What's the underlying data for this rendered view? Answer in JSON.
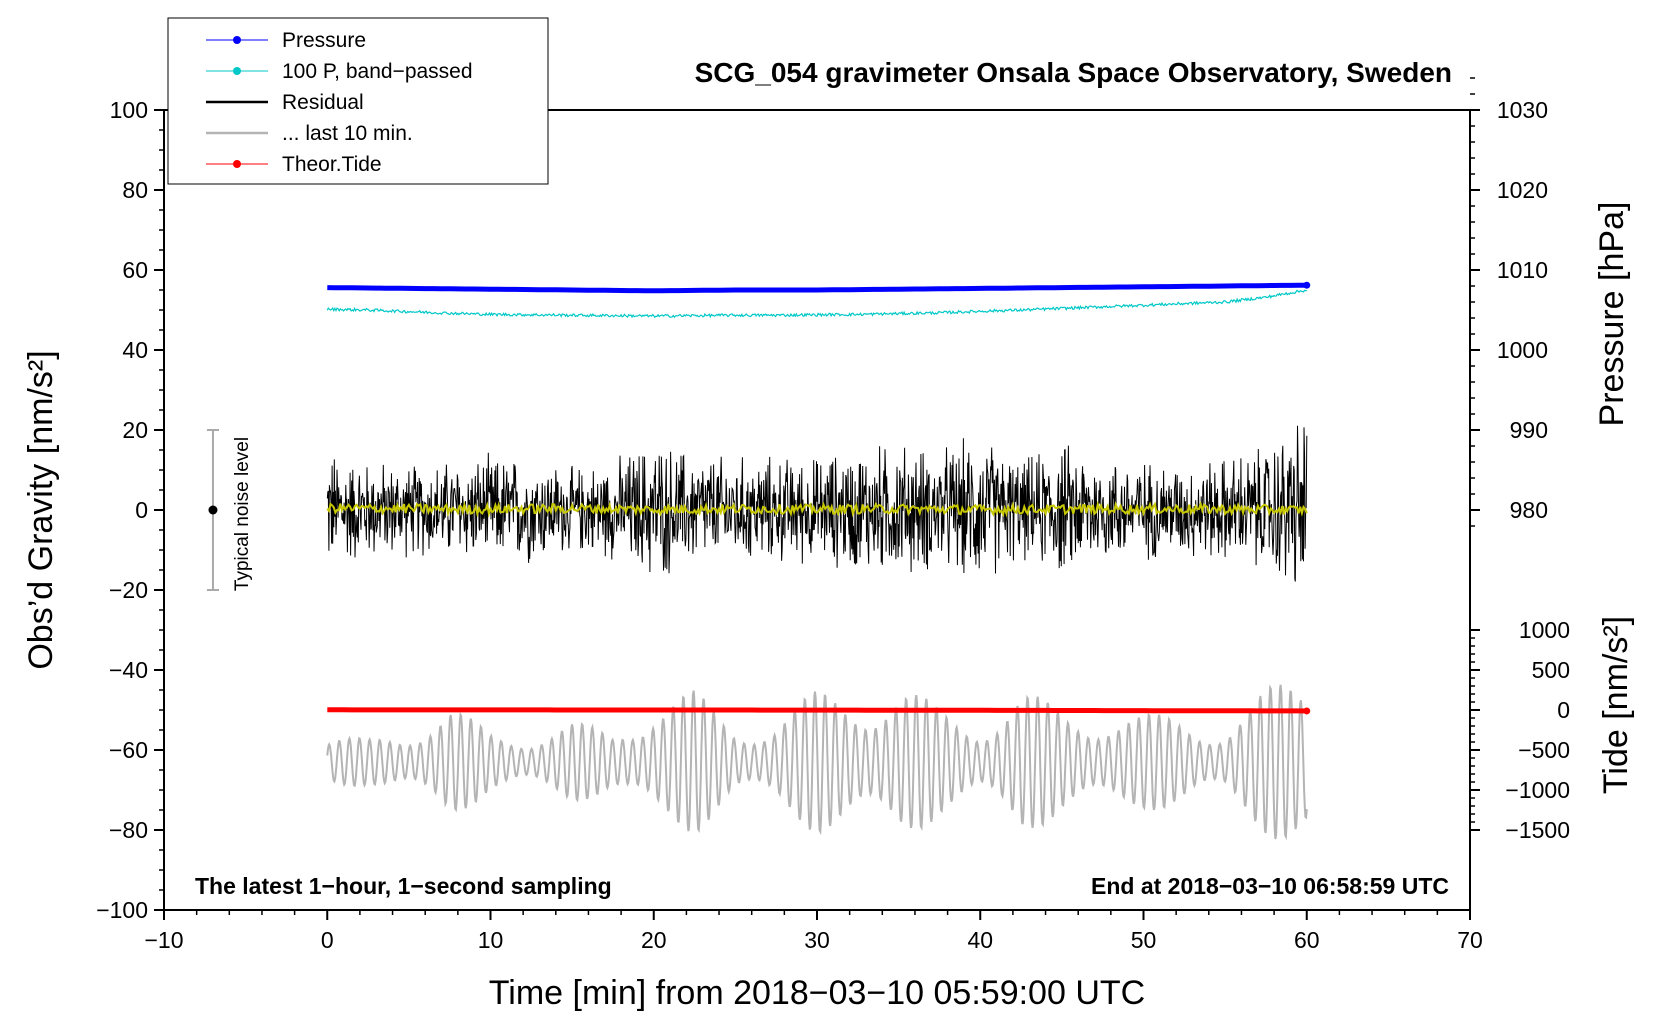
{
  "chart_data": {
    "type": "line",
    "title": "SCG_054 gravimeter Onsala Space Observatory, Sweden",
    "xlabel": "Time [min] from 2018−03−10 05:59:00 UTC",
    "ylabel_left": "Obs’d Gravity [nm/s²]",
    "ylabel_right_top": "Pressure [hPa]",
    "ylabel_right_bottom": "Tide [nm/s²]",
    "xlim": [
      -10,
      70
    ],
    "ylim": [
      -100,
      100
    ],
    "x_ticks": [
      "−10",
      "0",
      "10",
      "20",
      "30",
      "40",
      "50",
      "60",
      "70"
    ],
    "y_ticks_left": [
      "100",
      "80",
      "60",
      "40",
      "20",
      "0",
      "−20",
      "−40",
      "−60",
      "−80",
      "−100"
    ],
    "pressure_axis": {
      "ticks": [
        "1030",
        "1020",
        "1010",
        "1000",
        "990",
        "980"
      ],
      "values": [
        1030,
        1020,
        1010,
        1000,
        990,
        980
      ],
      "gravity_at_1000hPa": 40,
      "gravity_per_hPa": 2
    },
    "tide_axis": {
      "ticks": [
        "1000",
        "500",
        "0",
        "−500",
        "−1000",
        "−1500"
      ],
      "values": [
        1000,
        500,
        0,
        -500,
        -1000,
        -1500
      ],
      "gravity_at_0": -50,
      "gravity_per_unit": 0.02
    },
    "annotation_left": "The latest 1−hour, 1−second sampling",
    "annotation_right": "End at 2018−03−10 06:58:59 UTC",
    "noise_label": "Typical noise level",
    "noise_bar": {
      "x": -7,
      "y_center": 0,
      "y_min": -20,
      "y_max": 20
    },
    "legend": [
      {
        "label": "Pressure",
        "color": "#0000ff",
        "marker": true,
        "width": 1
      },
      {
        "label": "100 P, band−passed",
        "color": "#00c8c8",
        "marker": true,
        "width": 1
      },
      {
        "label": "Residual",
        "color": "#000000",
        "marker": false,
        "width": 2.5
      },
      {
        "label": "... last 10 min.",
        "color": "#b4b4b4",
        "marker": false,
        "width": 2.5
      },
      {
        "label": "Theor.Tide",
        "color": "#ff0000",
        "marker": true,
        "width": 1
      }
    ],
    "series": [
      {
        "name": "Pressure",
        "color": "#0000ff",
        "axis": "pressure_hPa",
        "x": [
          0,
          5,
          10,
          15,
          20,
          25,
          30,
          35,
          40,
          45,
          50,
          55,
          60
        ],
        "y": [
          1007.8,
          1007.7,
          1007.6,
          1007.5,
          1007.4,
          1007.5,
          1007.5,
          1007.6,
          1007.7,
          1007.8,
          1007.9,
          1008.0,
          1008.1
        ]
      },
      {
        "name": "100 P, band−passed",
        "color": "#00c8c8",
        "axis": "gravity",
        "x": [
          0,
          2.5,
          5,
          7.5,
          10,
          12.5,
          15,
          17.5,
          20,
          22.5,
          25,
          27.5,
          30,
          32.5,
          35,
          37.5,
          40,
          42.5,
          45,
          47.5,
          50,
          52.5,
          55,
          57.5,
          60
        ],
        "y": [
          50.2,
          50.0,
          49.6,
          49.2,
          48.9,
          48.8,
          48.7,
          48.6,
          48.5,
          48.6,
          48.7,
          48.7,
          48.8,
          48.9,
          49.1,
          49.3,
          49.7,
          50.0,
          50.4,
          50.8,
          51.2,
          51.6,
          52.0,
          53.2,
          55.0
        ]
      },
      {
        "name": "Residual",
        "color": "#000000",
        "axis": "gravity",
        "x": [
          0,
          2.5,
          5,
          7.5,
          10,
          12.5,
          15,
          17.5,
          20,
          22.5,
          25,
          27.5,
          30,
          32.5,
          35,
          37.5,
          40,
          42.5,
          45,
          47.5,
          50,
          52.5,
          55,
          57.5,
          60
        ],
        "envelope": [
          17,
          14,
          13,
          14,
          15,
          15,
          12,
          14,
          20,
          16,
          15,
          15,
          15,
          18,
          19,
          17,
          21,
          14,
          19,
          15,
          14,
          13,
          15,
          18,
          28
        ]
      },
      {
        "name": "Residual smoothed",
        "color": "#c8c800",
        "axis": "gravity",
        "x": [
          0,
          5,
          10,
          15,
          20,
          25,
          30,
          35,
          40,
          45,
          50,
          55,
          60
        ],
        "y": [
          0.5,
          0.3,
          0.2,
          0.4,
          0.1,
          0.3,
          0.2,
          0.3,
          0.1,
          0.2,
          0.3,
          0.2,
          0.0
        ]
      },
      {
        "name": "... last 10 min.",
        "color": "#b4b4b4",
        "axis": "gravity",
        "x": [
          0,
          2.5,
          5,
          7.5,
          10,
          12.5,
          15,
          17.5,
          20,
          22.5,
          25,
          27.5,
          30,
          32.5,
          35,
          37.5,
          40,
          42.5,
          45,
          47.5,
          50,
          52.5,
          55,
          57.5,
          60
        ],
        "offset": -63,
        "envelope": [
          6,
          6,
          10,
          14,
          8,
          8,
          10,
          8,
          18,
          18,
          10,
          12,
          18,
          20,
          20,
          14,
          12,
          18,
          14,
          14,
          12,
          12,
          10,
          18,
          26
        ]
      },
      {
        "name": "Theor.Tide",
        "color": "#ff0000",
        "axis": "tide",
        "x": [
          0,
          10,
          20,
          30,
          40,
          50,
          60
        ],
        "y": [
          2,
          1,
          0,
          -1,
          -4,
          -8,
          -12
        ]
      }
    ]
  }
}
